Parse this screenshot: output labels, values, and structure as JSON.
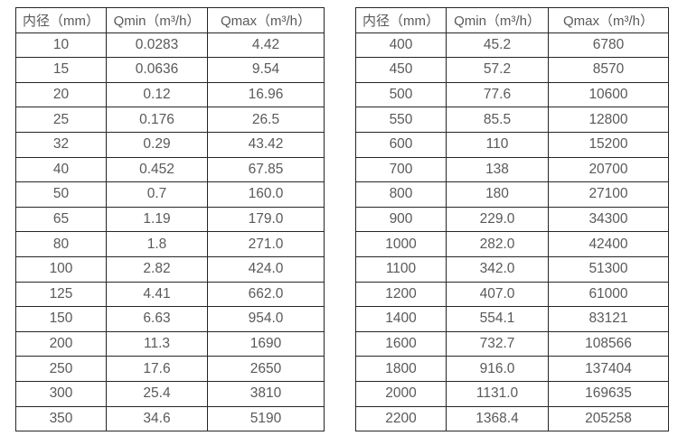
{
  "style": {
    "background": "#ffffff",
    "border_color": "#262626",
    "text_color": "#595959"
  },
  "chart_data": [
    {
      "type": "table",
      "headers": [
        "内径（mm）",
        "Qmin（m³/h）",
        "Qmax（m³/h）"
      ],
      "rows": [
        [
          "10",
          "0.0283",
          "4.42"
        ],
        [
          "15",
          "0.0636",
          "9.54"
        ],
        [
          "20",
          "0.12",
          "16.96"
        ],
        [
          "25",
          "0.176",
          "26.5"
        ],
        [
          "32",
          "0.29",
          "43.42"
        ],
        [
          "40",
          "0.452",
          "67.85"
        ],
        [
          "50",
          "0.7",
          "160.0"
        ],
        [
          "65",
          "1.19",
          "179.0"
        ],
        [
          "80",
          "1.8",
          "271.0"
        ],
        [
          "100",
          "2.82",
          "424.0"
        ],
        [
          "125",
          "4.41",
          "662.0"
        ],
        [
          "150",
          "6.63",
          "954.0"
        ],
        [
          "200",
          "11.3",
          "1690"
        ],
        [
          "250",
          "17.6",
          "2650"
        ],
        [
          "300",
          "25.4",
          "3810"
        ],
        [
          "350",
          "34.6",
          "5190"
        ]
      ]
    },
    {
      "type": "table",
      "headers": [
        "内径（mm）",
        "Qmin（m³/h）",
        "Qmax（m³/h）"
      ],
      "rows": [
        [
          "400",
          "45.2",
          "6780"
        ],
        [
          "450",
          "57.2",
          "8570"
        ],
        [
          "500",
          "77.6",
          "10600"
        ],
        [
          "550",
          "85.5",
          "12800"
        ],
        [
          "600",
          "110",
          "15200"
        ],
        [
          "700",
          "138",
          "20700"
        ],
        [
          "800",
          "180",
          "27100"
        ],
        [
          "900",
          "229.0",
          "34300"
        ],
        [
          "1000",
          "282.0",
          "42400"
        ],
        [
          "1100",
          "342.0",
          "51300"
        ],
        [
          "1200",
          "407.0",
          "61000"
        ],
        [
          "1400",
          "554.1",
          "83121"
        ],
        [
          "1600",
          "732.7",
          "108566"
        ],
        [
          "1800",
          "916.0",
          "137404"
        ],
        [
          "2000",
          "1131.0",
          "169635"
        ],
        [
          "2200",
          "1368.4",
          "205258"
        ]
      ]
    }
  ]
}
